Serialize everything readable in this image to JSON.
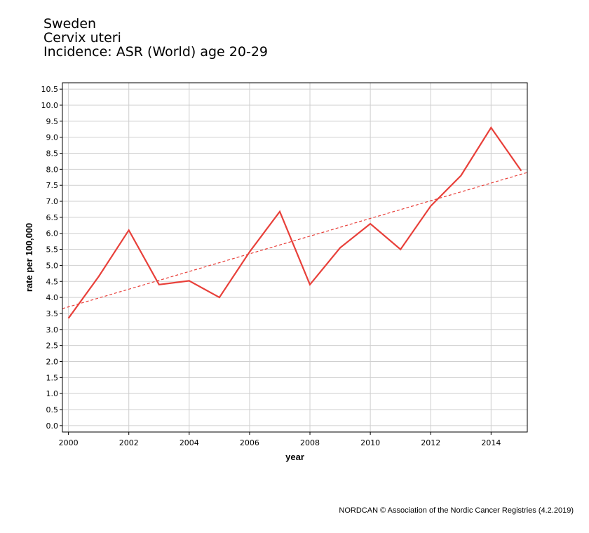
{
  "header": {
    "country": "Sweden",
    "site": "Cervix uteri",
    "measure": "Incidence: ASR (World) age 20-29"
  },
  "footer": {
    "credit": "NORDCAN © Association of the Nordic Cancer Registries (4.2.2019)"
  },
  "chart_data": {
    "type": "line",
    "xlabel": "year",
    "ylabel": "rate per 100,000",
    "xlim": [
      1999.8,
      2015.2
    ],
    "ylim": [
      -0.2,
      10.7
    ],
    "xticks": [
      "2000",
      "2002",
      "2004",
      "2006",
      "2008",
      "2010",
      "2012",
      "2014"
    ],
    "yticks": [
      "0.0",
      "0.5",
      "1.0",
      "1.5",
      "2.0",
      "2.5",
      "3.0",
      "3.5",
      "4.0",
      "4.5",
      "5.0",
      "5.5",
      "6.0",
      "6.5",
      "7.0",
      "7.5",
      "8.0",
      "8.5",
      "9.0",
      "9.5",
      "10.0",
      "10.5"
    ],
    "grid": true,
    "series": [
      {
        "style": "solid",
        "color": "#e8403a",
        "x": [
          2000,
          2001,
          2002,
          2003,
          2004,
          2005,
          2006,
          2007,
          2008,
          2009,
          2010,
          2011,
          2012,
          2013,
          2014,
          2015
        ],
        "y": [
          3.35,
          4.65,
          6.1,
          4.4,
          4.52,
          4.0,
          5.42,
          6.68,
          4.4,
          5.55,
          6.3,
          5.5,
          6.85,
          7.8,
          9.3,
          7.95
        ]
      },
      {
        "style": "dashed",
        "color": "#e8403a",
        "x": [
          1999.8,
          2015.2
        ],
        "y": [
          3.65,
          7.9
        ]
      }
    ]
  }
}
